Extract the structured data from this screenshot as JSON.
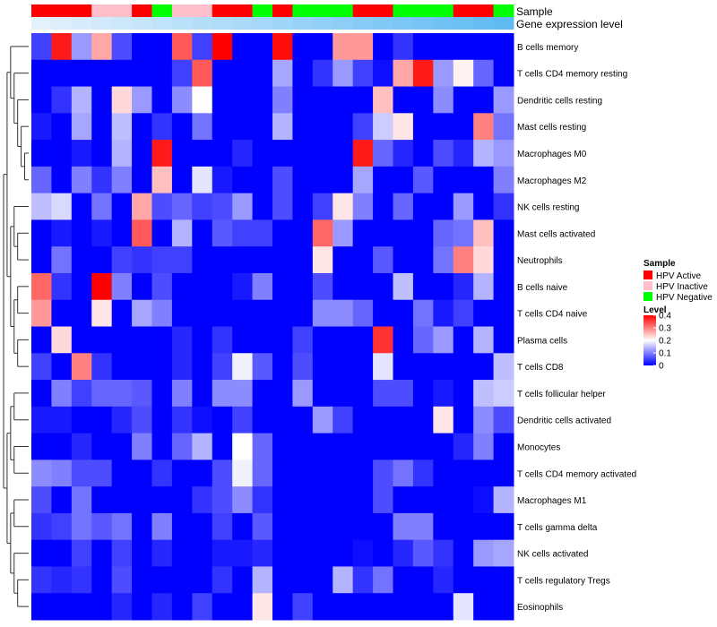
{
  "chart_data": {
    "type": "heatmap",
    "annotations": {
      "sample_label": "Sample",
      "expression_label": "Gene expression level",
      "sample_groups": [
        "HPV Active",
        "HPV Active",
        "HPV Active",
        "HPV Inactive",
        "HPV Inactive",
        "HPV Active",
        "HPV Negative",
        "HPV Inactive",
        "HPV Inactive",
        "HPV Active",
        "HPV Active",
        "HPV Negative",
        "HPV Active",
        "HPV Negative",
        "HPV Negative",
        "HPV Negative",
        "HPV Active",
        "HPV Active",
        "HPV Negative",
        "HPV Negative",
        "HPV Negative",
        "HPV Active",
        "HPV Active",
        "HPV Negative"
      ]
    },
    "rows": [
      "B cells memory",
      "T cells CD4 memory resting",
      "Dendritic cells resting",
      "Mast cells resting",
      "Macrophages M0",
      "Macrophages M2",
      "NK cells resting",
      "Mast cells activated",
      "Neutrophils",
      "B cells naive",
      "T cells CD4 naive",
      "Plasma cells",
      "T cells CD8",
      "T cells follicular helper",
      "Dendritic cells activated",
      "Monocytes",
      "T cells CD4 memory activated",
      "Macrophages M1",
      "T cells gamma delta",
      "NK cells activated",
      "T cells regulatory  Tregs",
      "Eosinophils"
    ],
    "values": [
      [
        0.05,
        0.38,
        0.12,
        0.27,
        0.06,
        0.0,
        0.0,
        0.33,
        0.05,
        0.4,
        0.0,
        0.0,
        0.39,
        0.0,
        0.0,
        0.28,
        0.28,
        0.0,
        0.04,
        0.0,
        0.0,
        0.0,
        0.0,
        0.0
      ],
      [
        0.0,
        0.0,
        0.0,
        0.0,
        0.0,
        0.0,
        0.0,
        0.05,
        0.33,
        0.0,
        0.0,
        0.0,
        0.13,
        0.0,
        0.04,
        0.12,
        0.05,
        0.01,
        0.27,
        0.38,
        0.12,
        0.21,
        0.08,
        0.0
      ],
      [
        0.0,
        0.04,
        0.14,
        0.0,
        0.23,
        0.12,
        0.0,
        0.11,
        0.2,
        0.0,
        0.0,
        0.0,
        0.1,
        0.0,
        0.0,
        0.0,
        0.0,
        0.25,
        0.0,
        0.0,
        0.11,
        0.0,
        0.0,
        0.12
      ],
      [
        0.02,
        0.0,
        0.13,
        0.0,
        0.15,
        0.0,
        0.04,
        0.0,
        0.09,
        0.0,
        0.0,
        0.0,
        0.14,
        0.0,
        0.0,
        0.0,
        0.05,
        0.16,
        0.22,
        0.0,
        0.0,
        0.0,
        0.3,
        0.09
      ],
      [
        0.0,
        0.0,
        0.02,
        0.0,
        0.14,
        0.0,
        0.38,
        0.0,
        0.0,
        0.0,
        0.03,
        0.0,
        0.0,
        0.0,
        0.0,
        0.0,
        0.38,
        0.08,
        0.03,
        0.0,
        0.06,
        0.03,
        0.14,
        0.12
      ],
      [
        0.08,
        0.0,
        0.1,
        0.04,
        0.1,
        0.0,
        0.25,
        0.0,
        0.18,
        0.02,
        0.0,
        0.0,
        0.06,
        0.0,
        0.0,
        0.0,
        0.13,
        0.0,
        0.0,
        0.07,
        0.0,
        0.0,
        0.0,
        0.1
      ],
      [
        0.15,
        0.17,
        0.0,
        0.09,
        0.0,
        0.27,
        0.06,
        0.08,
        0.05,
        0.06,
        0.12,
        0.0,
        0.06,
        0.0,
        0.05,
        0.22,
        0.1,
        0.0,
        0.08,
        0.0,
        0.0,
        0.12,
        0.0,
        0.04
      ],
      [
        0.0,
        0.02,
        0.0,
        0.02,
        0.0,
        0.33,
        0.0,
        0.14,
        0.0,
        0.07,
        0.05,
        0.05,
        0.0,
        0.0,
        0.32,
        0.12,
        0.0,
        0.0,
        0.0,
        0.0,
        0.08,
        0.09,
        0.25,
        0.0
      ],
      [
        0.0,
        0.09,
        0.0,
        0.0,
        0.05,
        0.04,
        0.05,
        0.05,
        0.0,
        0.0,
        0.0,
        0.0,
        0.0,
        0.0,
        0.22,
        0.0,
        0.0,
        0.07,
        0.0,
        0.0,
        0.09,
        0.3,
        0.23,
        0.0
      ],
      [
        0.32,
        0.04,
        0.0,
        0.4,
        0.1,
        0.0,
        0.06,
        0.0,
        0.0,
        0.0,
        0.02,
        0.1,
        0.0,
        0.0,
        0.06,
        0.0,
        0.0,
        0.0,
        0.15,
        0.0,
        0.0,
        0.03,
        0.14,
        0.0
      ],
      [
        0.28,
        0.0,
        0.0,
        0.22,
        0.0,
        0.13,
        0.1,
        0.0,
        0.0,
        0.0,
        0.0,
        0.0,
        0.0,
        0.0,
        0.11,
        0.11,
        0.08,
        0.0,
        0.0,
        0.09,
        0.02,
        0.05,
        0.0,
        0.0
      ],
      [
        0.0,
        0.23,
        0.0,
        0.0,
        0.0,
        0.0,
        0.0,
        0.03,
        0.0,
        0.04,
        0.0,
        0.0,
        0.0,
        0.05,
        0.0,
        0.0,
        0.0,
        0.36,
        0.0,
        0.08,
        0.12,
        0.0,
        0.14,
        0.0
      ],
      [
        0.05,
        0.0,
        0.3,
        0.04,
        0.0,
        0.0,
        0.0,
        0.03,
        0.0,
        0.05,
        0.19,
        0.07,
        0.0,
        0.06,
        0.0,
        0.0,
        0.0,
        0.18,
        0.0,
        0.0,
        0.0,
        0.0,
        0.0,
        0.15
      ],
      [
        0.0,
        0.1,
        0.05,
        0.08,
        0.08,
        0.07,
        0.0,
        0.1,
        0.0,
        0.11,
        0.11,
        0.0,
        0.0,
        0.12,
        0.0,
        0.0,
        0.0,
        0.06,
        0.06,
        0.0,
        0.02,
        0.0,
        0.15,
        0.16
      ],
      [
        0.02,
        0.02,
        0.0,
        0.0,
        0.03,
        0.06,
        0.0,
        0.04,
        0.01,
        0.0,
        0.05,
        0.0,
        0.0,
        0.0,
        0.12,
        0.05,
        0.0,
        0.0,
        0.0,
        0.0,
        0.22,
        0.0,
        0.11,
        0.06
      ],
      [
        0.0,
        0.0,
        0.03,
        0.0,
        0.0,
        0.1,
        0.0,
        0.08,
        0.14,
        0.0,
        0.2,
        0.08,
        0.0,
        0.0,
        0.0,
        0.0,
        0.0,
        0.0,
        0.0,
        0.0,
        0.0,
        0.03,
        0.1,
        0.0
      ],
      [
        0.11,
        0.1,
        0.06,
        0.06,
        0.0,
        0.0,
        0.04,
        0.0,
        0.0,
        0.06,
        0.19,
        0.08,
        0.0,
        0.0,
        0.0,
        0.0,
        0.0,
        0.06,
        0.09,
        0.04,
        0.0,
        0.0,
        0.0,
        0.0
      ],
      [
        0.06,
        0.0,
        0.09,
        0.0,
        0.0,
        0.0,
        0.0,
        0.0,
        0.04,
        0.06,
        0.11,
        0.04,
        0.0,
        0.0,
        0.0,
        0.0,
        0.0,
        0.06,
        0.0,
        0.0,
        0.0,
        0.0,
        0.01,
        0.14
      ],
      [
        0.04,
        0.05,
        0.09,
        0.07,
        0.09,
        0.0,
        0.1,
        0.0,
        0.0,
        0.05,
        0.0,
        0.07,
        0.0,
        0.0,
        0.0,
        0.0,
        0.0,
        0.0,
        0.1,
        0.1,
        0.0,
        0.0,
        0.0,
        0.0
      ],
      [
        0.0,
        0.0,
        0.05,
        0.0,
        0.05,
        0.0,
        0.03,
        0.0,
        0.0,
        0.02,
        0.02,
        0.03,
        0.0,
        0.0,
        0.0,
        0.0,
        0.01,
        0.0,
        0.03,
        0.07,
        0.04,
        0.0,
        0.12,
        0.13
      ],
      [
        0.04,
        0.03,
        0.04,
        0.0,
        0.06,
        0.0,
        0.0,
        0.0,
        0.0,
        0.04,
        0.0,
        0.14,
        0.0,
        0.0,
        0.0,
        0.14,
        0.04,
        0.09,
        0.0,
        0.0,
        0.03,
        0.0,
        0.0,
        0.0
      ],
      [
        0.0,
        0.0,
        0.0,
        0.0,
        0.03,
        0.0,
        0.03,
        0.0,
        0.05,
        0.0,
        0.0,
        0.22,
        0.0,
        0.05,
        0.0,
        0.0,
        0.0,
        0.0,
        0.0,
        0.0,
        0.0,
        0.18,
        0.0,
        0.0
      ]
    ],
    "legend": {
      "sample_title": "Sample",
      "sample_entries": [
        {
          "label": "HPV Active",
          "color": "#ff0000"
        },
        {
          "label": "HPV Inactive",
          "color": "#ffc0cb"
        },
        {
          "label": "HPV Negative",
          "color": "#00ff00"
        }
      ],
      "level_title": "Level",
      "level_ticks": [
        "0.4",
        "0.3",
        "0.2",
        "0.1",
        "0"
      ],
      "level_tick_values": [
        0.4,
        0.3,
        0.2,
        0.1,
        0
      ],
      "level_range": [
        0,
        0.4
      ]
    },
    "colors": {
      "low": "#0000ff",
      "mid": "#ffffff",
      "high": "#ff0000",
      "expression_bar": [
        "#e3f1fc",
        "#60bbf3"
      ]
    }
  }
}
